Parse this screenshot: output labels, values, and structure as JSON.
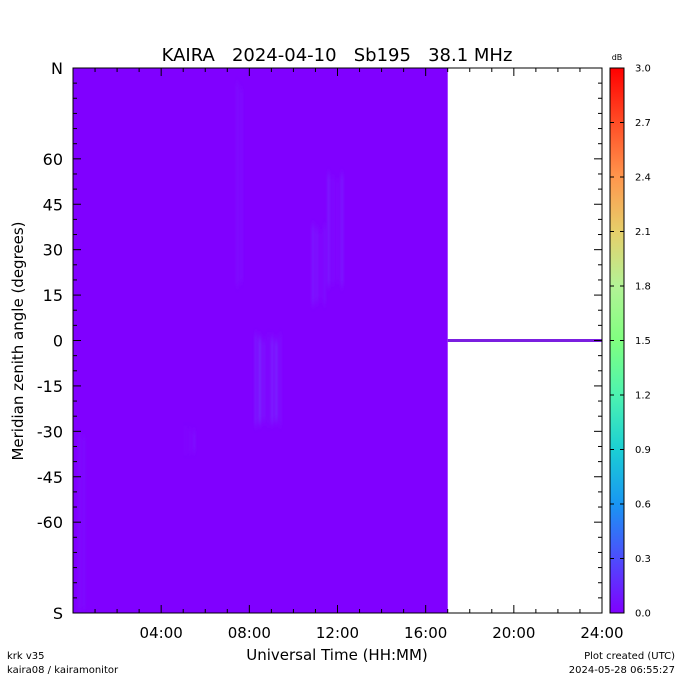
{
  "chart_data": {
    "type": "heatmap",
    "title": "KAIRA   2024-04-10   Sb195   38.1 MHz",
    "xlabel": "Universal Time (HH:MM)",
    "ylabel": "Meridian zenith angle (degrees)",
    "x_tick_labels": [
      "04:00",
      "08:00",
      "12:00",
      "16:00",
      "20:00",
      "24:00"
    ],
    "x_tick_hours": [
      4,
      8,
      12,
      16,
      20,
      24
    ],
    "xlim_hours": [
      0,
      24
    ],
    "y_tick_labels": [
      "N",
      "60",
      "45",
      "30",
      "15",
      "0",
      "-15",
      "-30",
      "-45",
      "-60",
      "S"
    ],
    "y_tick_values": [
      90,
      60,
      45,
      30,
      15,
      0,
      -15,
      -30,
      -45,
      -60,
      -90
    ],
    "ylim": [
      -90,
      90
    ],
    "data_end_hour": 17.0,
    "colorbar": {
      "unit": "dB",
      "range": [
        0.0,
        3.0
      ],
      "tick_labels": [
        "0.0",
        "0.3",
        "0.6",
        "0.9",
        "1.2",
        "1.5",
        "1.8",
        "2.1",
        "2.4",
        "2.7",
        "3.0"
      ],
      "colormap": "rainbow"
    },
    "background_color": "#8000ff",
    "zero_line_color": "#7b1fe0",
    "enhancements": [
      {
        "t_start": 8.2,
        "t_end": 9.5,
        "angle_min": -28,
        "angle_max": 2,
        "level": 0.15
      },
      {
        "t_start": 10.8,
        "t_end": 11.5,
        "angle_min": 12,
        "angle_max": 38,
        "level": 0.1
      },
      {
        "t_start": 11.5,
        "t_end": 12.3,
        "angle_min": 18,
        "angle_max": 55,
        "level": 0.1
      },
      {
        "t_start": 7.4,
        "t_end": 7.7,
        "angle_min": 18,
        "angle_max": 85,
        "level": 0.06
      },
      {
        "t_start": 5.0,
        "t_end": 5.6,
        "angle_min": -38,
        "angle_max": -28,
        "level": 0.06
      },
      {
        "t_start": 0.0,
        "t_end": 0.6,
        "angle_min": -90,
        "angle_max": -30,
        "level": 0.05
      }
    ]
  },
  "footer": {
    "left_line1": "krk v35",
    "left_line2": "kaira08 / kairamonitor",
    "right_line1": "Plot created (UTC)",
    "right_line2": "2024-05-28 06:55:27"
  }
}
